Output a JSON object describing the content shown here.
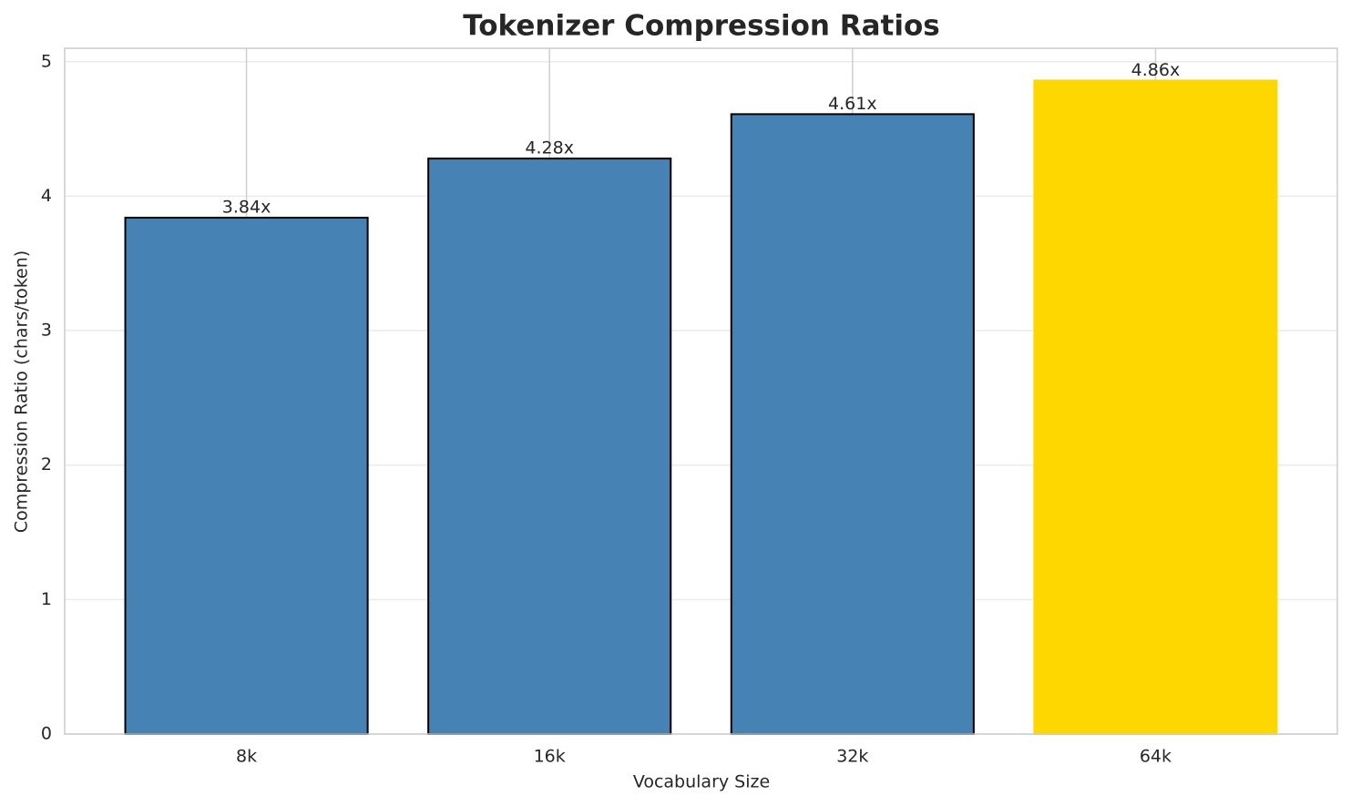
{
  "chart_data": {
    "type": "bar",
    "title": "Tokenizer Compression Ratios",
    "x_label": "Vocabulary Size",
    "y_label": "Compression Ratio (chars/token)",
    "categories": [
      "8k",
      "16k",
      "32k",
      "64k"
    ],
    "values": [
      3.84,
      4.28,
      4.61,
      4.86
    ],
    "value_labels": [
      "3.84x",
      "4.28x",
      "4.61x",
      "4.86x"
    ],
    "colors": [
      "#4682b4",
      "#4682b4",
      "#4682b4",
      "#ffd700"
    ],
    "edgecolors": [
      "#000000",
      "#000000",
      "#000000",
      "#ffd700"
    ],
    "ylim": [
      0,
      5.1
    ],
    "yticks": [
      0,
      1,
      2,
      3,
      4,
      5
    ],
    "grid": true
  }
}
